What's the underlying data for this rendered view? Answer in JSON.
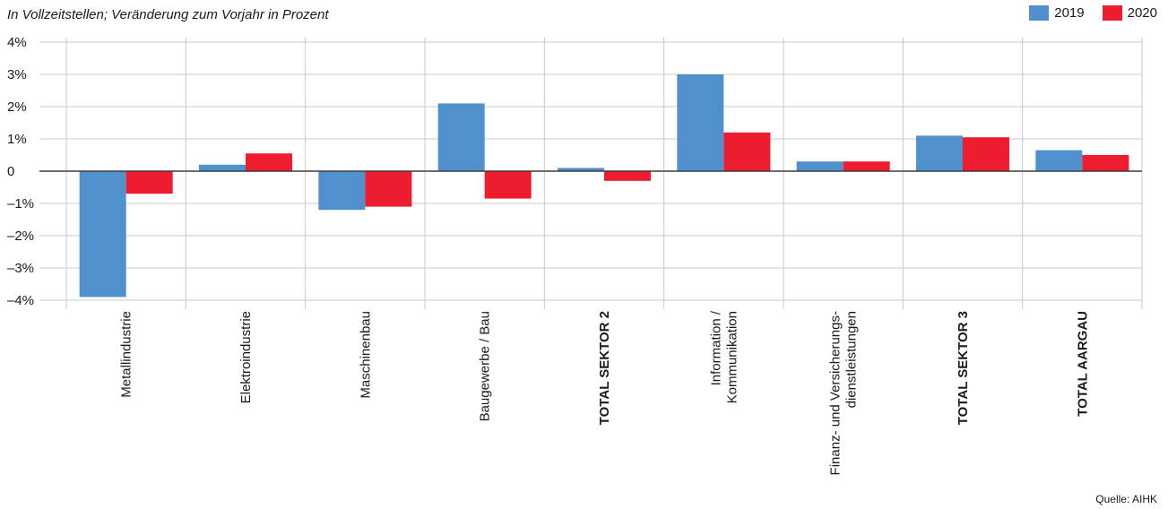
{
  "chart_data": {
    "type": "bar",
    "title": "",
    "subtitle": "In Vollzeitstellen; Veränderung zum Vorjahr in Prozent",
    "source": "Quelle: AIHK",
    "categories": [
      {
        "lines": [
          "Metallindustrie"
        ],
        "bold": false
      },
      {
        "lines": [
          "Elektroindustrie"
        ],
        "bold": false
      },
      {
        "lines": [
          "Maschinenbau"
        ],
        "bold": false
      },
      {
        "lines": [
          "Baugewerbe / Bau"
        ],
        "bold": false
      },
      {
        "lines": [
          "TOTAL SEKTOR 2"
        ],
        "bold": true
      },
      {
        "lines": [
          "Information /",
          "Kommunikation"
        ],
        "bold": false
      },
      {
        "lines": [
          "Finanz- und Versicherungs-",
          "dienstleistungen"
        ],
        "bold": false
      },
      {
        "lines": [
          "TOTAL SEKTOR 3"
        ],
        "bold": true
      },
      {
        "lines": [
          "TOTAL AARGAU"
        ],
        "bold": true
      }
    ],
    "series": [
      {
        "name": "2019",
        "color": "#4f90cd",
        "values": [
          -3.9,
          0.2,
          -1.2,
          2.1,
          0.1,
          3.0,
          0.3,
          1.1,
          0.65
        ]
      },
      {
        "name": "2020",
        "color": "#ed1c2e",
        "values": [
          -0.7,
          0.55,
          -1.1,
          -0.85,
          -0.3,
          1.2,
          0.3,
          1.05,
          0.5
        ]
      }
    ],
    "ylim": [
      -4,
      4
    ],
    "yticks": [
      {
        "value": 4,
        "label": "4%"
      },
      {
        "value": 3,
        "label": "3%"
      },
      {
        "value": 2,
        "label": "2%"
      },
      {
        "value": 1,
        "label": "1%"
      },
      {
        "value": 0,
        "label": "0"
      },
      {
        "value": -1,
        "label": "–1%"
      },
      {
        "value": -2,
        "label": "–2%"
      },
      {
        "value": -3,
        "label": "–3%"
      },
      {
        "value": -4,
        "label": "–4%"
      }
    ],
    "grid": true,
    "legend_position": "top-right",
    "xlabel": "",
    "ylabel": ""
  }
}
